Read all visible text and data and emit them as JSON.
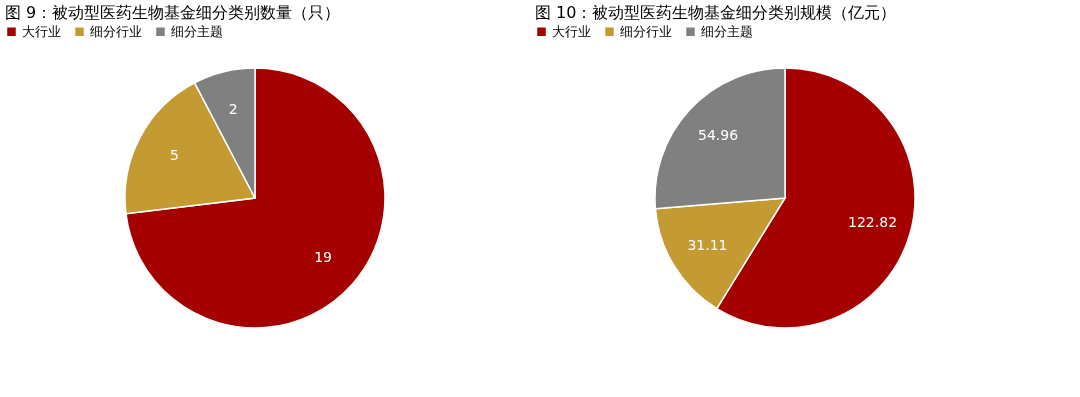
{
  "chart_data": [
    {
      "type": "pie",
      "title": "图 9：被动型医药生物基金细分类别数量（只）",
      "categories": [
        "大行业",
        "细分行业",
        "细分主题"
      ],
      "values": [
        19,
        5,
        2
      ],
      "colors": [
        "#a50000",
        "#c49a32",
        "#808080"
      ],
      "data_labels": true,
      "legend": "top"
    },
    {
      "type": "pie",
      "title": "图 10：被动型医药生物基金细分类别规模（亿元）",
      "categories": [
        "大行业",
        "细分行业",
        "细分主题"
      ],
      "values": [
        122.82,
        31.11,
        54.96
      ],
      "colors": [
        "#a50000",
        "#c49a32",
        "#808080"
      ],
      "data_labels": true,
      "legend": "top"
    }
  ]
}
